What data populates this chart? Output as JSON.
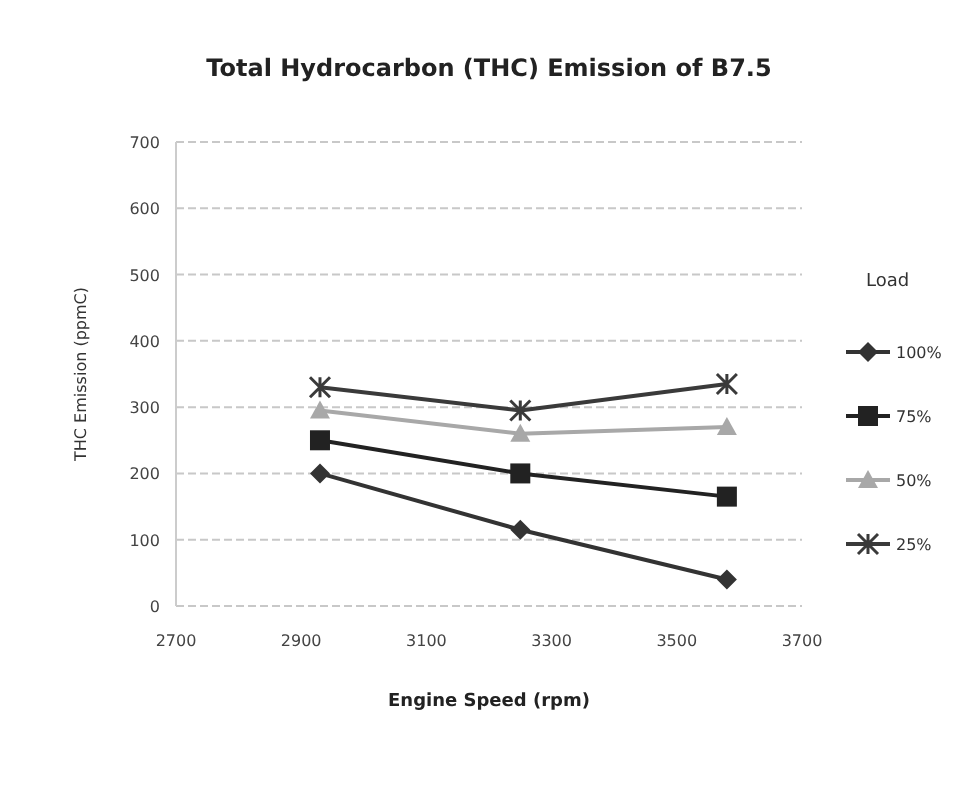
{
  "chart_data": {
    "type": "line",
    "title": "Total Hydrocarbon (THC) Emission of B7.5",
    "xlabel": "Engine Speed (rpm)",
    "ylabel": "THC Emission (ppmC)",
    "legend_title": "Load",
    "legend": "right",
    "grid": "y",
    "x": [
      2930,
      3250,
      3580
    ],
    "xlim": [
      2700,
      3700
    ],
    "xticks": [
      2700,
      2900,
      3100,
      3300,
      3500,
      3700
    ],
    "ylim": [
      0,
      700
    ],
    "yticks": [
      0,
      100,
      200,
      300,
      400,
      500,
      600,
      700
    ],
    "series": [
      {
        "name": "100%",
        "color": "#333333",
        "marker": "diamond",
        "values": [
          200,
          115,
          40
        ]
      },
      {
        "name": "75%",
        "color": "#222222",
        "marker": "square",
        "values": [
          250,
          200,
          165
        ]
      },
      {
        "name": "50%",
        "color": "#a8a8a8",
        "marker": "triangle",
        "values": [
          295,
          260,
          270
        ]
      },
      {
        "name": "25%",
        "color": "#3a3a3a",
        "marker": "cross",
        "values": [
          330,
          295,
          335
        ]
      }
    ]
  }
}
